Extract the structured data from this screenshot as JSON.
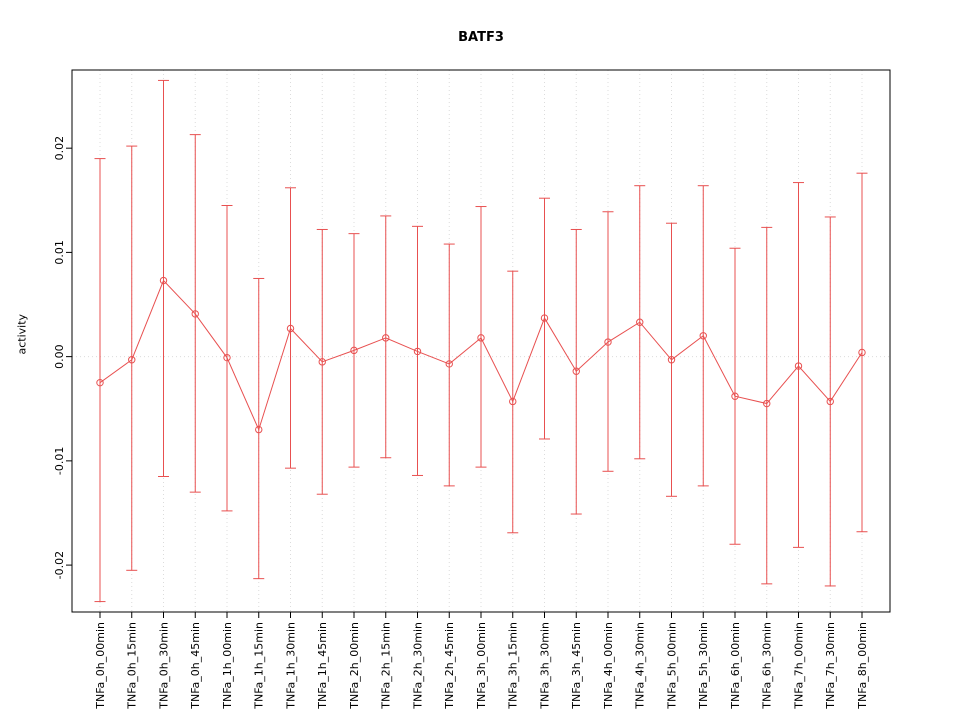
{
  "chart_data": {
    "type": "line",
    "title": "BATF3",
    "xlabel": "",
    "ylabel": "activity",
    "ylim": [
      -0.0245,
      0.0275
    ],
    "yticks": [
      -0.02,
      -0.01,
      0.0,
      0.01,
      0.02
    ],
    "ytick_labels": [
      "-0.02",
      "-0.01",
      "0.00",
      "0.01",
      "0.02"
    ],
    "grid": "vertical dotted gridline per category, dotted horizontal line at 0",
    "legend_position": "none",
    "marker": "open-circle",
    "colors": {
      "series": "#e85050",
      "grid": "#dcdcdc",
      "axis": "#000000"
    },
    "categories": [
      "TNFa_0h_00min",
      "TNFa_0h_15min",
      "TNFa_0h_30min",
      "TNFa_0h_45min",
      "TNFa_1h_00min",
      "TNFa_1h_15min",
      "TNFa_1h_30min",
      "TNFa_1h_45min",
      "TNFa_2h_00min",
      "TNFa_2h_15min",
      "TNFa_2h_30min",
      "TNFa_2h_45min",
      "TNFa_3h_00min",
      "TNFa_3h_15min",
      "TNFa_3h_30min",
      "TNFa_3h_45min",
      "TNFa_4h_00min",
      "TNFa_4h_30min",
      "TNFa_5h_00min",
      "TNFa_5h_30min",
      "TNFa_6h_00min",
      "TNFa_6h_30min",
      "TNFa_7h_00min",
      "TNFa_7h_30min",
      "TNFa_8h_00min"
    ],
    "values": [
      -0.0025,
      -0.0003,
      0.0073,
      0.0041,
      -0.0001,
      -0.007,
      0.0027,
      -0.0005,
      0.0006,
      0.0018,
      0.0005,
      -0.0007,
      0.0018,
      -0.0043,
      0.0037,
      -0.0014,
      0.0014,
      0.0033,
      -0.0003,
      0.002,
      -0.0038,
      -0.0045,
      -0.0009,
      -0.0043,
      0.0004
    ],
    "error_upper": [
      0.019,
      0.0202,
      0.0265,
      0.0213,
      0.0145,
      0.0075,
      0.0162,
      0.0122,
      0.0118,
      0.0135,
      0.0125,
      0.0108,
      0.0144,
      0.0082,
      0.0152,
      0.0122,
      0.0139,
      0.0164,
      0.0128,
      0.0164,
      0.0104,
      0.0124,
      0.0167,
      0.0134,
      0.0176
    ],
    "error_lower": [
      -0.0235,
      -0.0205,
      -0.0115,
      -0.013,
      -0.0148,
      -0.0213,
      -0.0107,
      -0.0132,
      -0.0106,
      -0.0097,
      -0.0114,
      -0.0124,
      -0.0106,
      -0.0169,
      -0.0079,
      -0.0151,
      -0.011,
      -0.0098,
      -0.0134,
      -0.0124,
      -0.018,
      -0.0218,
      -0.0183,
      -0.022,
      -0.0168
    ]
  }
}
